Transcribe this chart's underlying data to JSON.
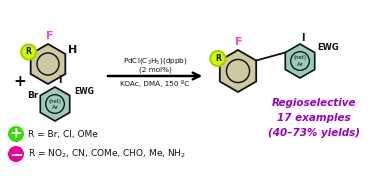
{
  "bg_color": "#ffffff",
  "reagent_line1": "PdCl(C$_3$H$_5$)(dppb)",
  "reagent_line2": "(2 mol%)",
  "reagent_line3": "KOAc, DMA, 150 ºC",
  "regioselective_text": "Regioselective\n17 examples\n(40–73% yields)",
  "regioselective_color": "#9900cc",
  "green_label": "R = Br, Cl, OMe",
  "pink_label": "R = NO$_2$, CN, COMe, CHO, Me, NH$_2$",
  "green_circle_color": "#33dd00",
  "pink_circle_color": "#ee0099",
  "F_color": "#ff44cc",
  "R_circle_outline": "#aacc00",
  "R_circle_fill": "#ccff00",
  "hex_fill_tan": "#cdc9a0",
  "hex_fill_teal": "#99ccbb",
  "hex_outline": "#111111",
  "text_color": "#111111"
}
